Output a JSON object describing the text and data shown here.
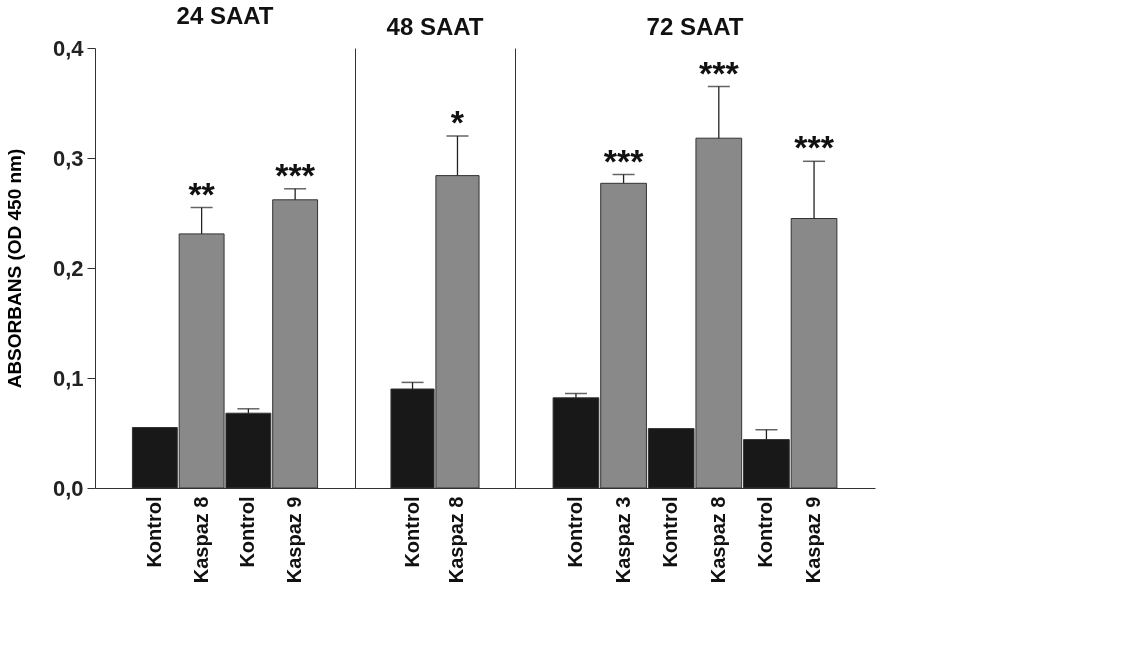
{
  "chart_data": [
    {
      "type": "bar",
      "title": "24 SAAT",
      "ylabel": "ABSORBANS (OD 450 nm)",
      "categories": [
        "Kontrol",
        "Kaspaz 8",
        "Kontrol",
        "Kaspaz 9"
      ],
      "values": [
        0.055,
        0.231,
        0.068,
        0.262
      ],
      "colors": [
        "#181818",
        "#898989",
        "#181818",
        "#898989"
      ],
      "errors": [
        null,
        [
          0.231,
          0.255
        ],
        [
          0.068,
          0.072
        ],
        [
          0.262,
          0.272
        ]
      ],
      "value_labels": [
        null,
        "**",
        null,
        "***"
      ],
      "ylim": [
        0,
        0.4
      ],
      "yticks": [
        {
          "value": 0,
          "label": "0,0"
        },
        {
          "value": 0.1,
          "label": "0,1"
        },
        {
          "value": 0.2,
          "label": "0,2"
        },
        {
          "value": 0.3,
          "label": "0,3"
        },
        {
          "value": 0.4,
          "label": "0,4"
        }
      ],
      "grid": false
    },
    {
      "type": "bar",
      "title": "48 SAAT",
      "categories": [
        "Kontrol",
        "Kaspaz 8"
      ],
      "values": [
        0.09,
        0.284
      ],
      "colors": [
        "#181818",
        "#898989"
      ],
      "errors": [
        [
          0.09,
          0.096
        ],
        [
          0.284,
          0.32
        ]
      ],
      "value_labels": [
        null,
        "*"
      ],
      "ylim": [
        0,
        0.4
      ],
      "tick_labels": "x",
      "grid": false
    },
    {
      "type": "bar",
      "title": "72 SAAT",
      "categories": [
        "Kontrol",
        "Kaspaz 3",
        "Kontrol",
        "Kaspaz 8",
        "Kontrol",
        "Kaspaz 9"
      ],
      "values": [
        0.082,
        0.277,
        0.054,
        0.318,
        0.044,
        0.245
      ],
      "colors": [
        "#181818",
        "#898989",
        "#181818",
        "#898989",
        "#181818",
        "#898989"
      ],
      "errors": [
        [
          0.082,
          0.086
        ],
        [
          0.277,
          0.285
        ],
        null,
        [
          0.318,
          0.365
        ],
        [
          0.044,
          0.053
        ],
        [
          0.245,
          0.297
        ]
      ],
      "value_labels": [
        null,
        "***",
        null,
        "***",
        null,
        "***"
      ],
      "ylim": [
        0,
        0.4
      ],
      "tick_labels": "x",
      "grid": false
    }
  ]
}
